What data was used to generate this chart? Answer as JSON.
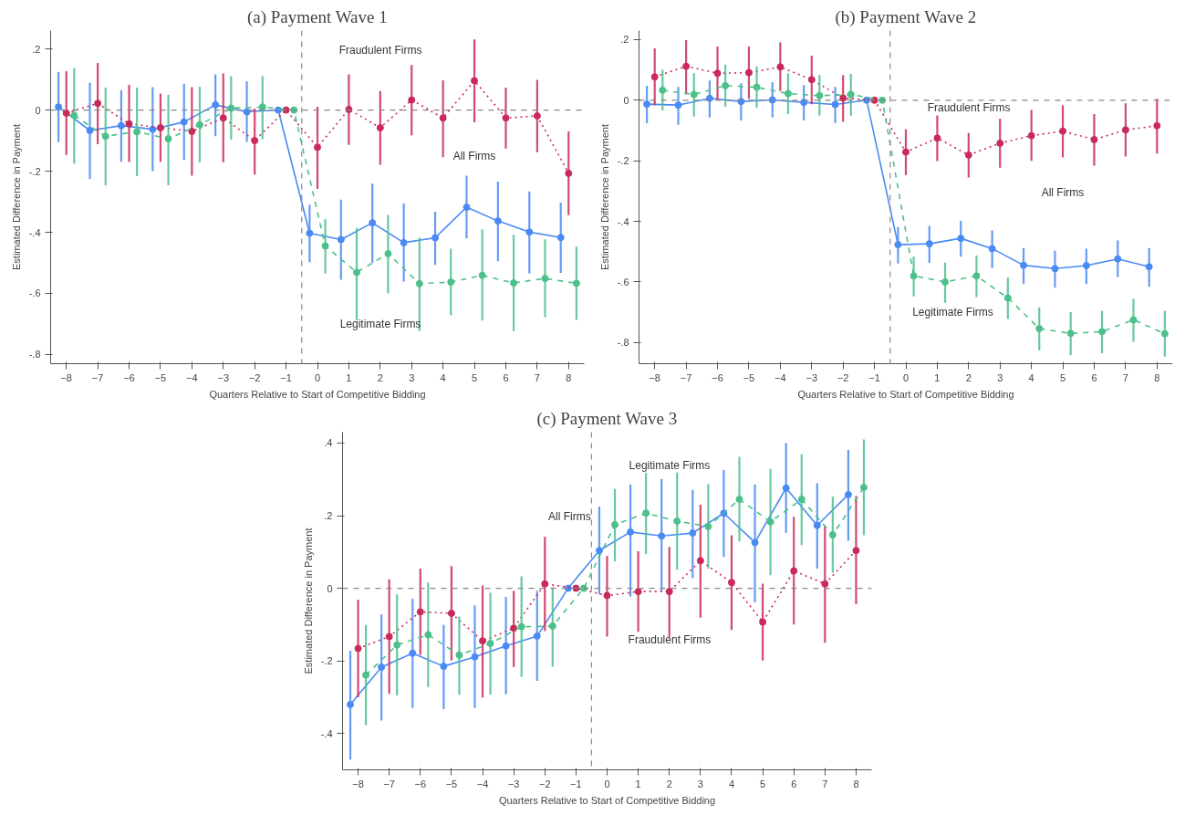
{
  "chart_data": [
    {
      "type": "line",
      "title": "(a) Payment Wave 1",
      "xlabel": "Quarters Relative to Start of Competitive Bidding",
      "ylabel": "Estimated Difference in Payment",
      "xlim": [
        -8.5,
        8.5
      ],
      "ylim": [
        -0.83,
        0.26
      ],
      "xticks": [
        -8,
        -7,
        -6,
        -5,
        -4,
        -3,
        -2,
        -1,
        0,
        1,
        2,
        3,
        4,
        5,
        6,
        7,
        8
      ],
      "yticks": [
        {
          "value": 0.2,
          "label": ".2"
        },
        {
          "value": 0,
          "label": "0"
        },
        {
          "value": -0.2,
          "label": "-.2"
        },
        {
          "value": -0.4,
          "label": "-.4"
        },
        {
          "value": -0.6,
          "label": "-.6"
        },
        {
          "value": -0.8,
          "label": "-.8"
        }
      ],
      "grid": false,
      "marker": "circle",
      "series": [
        {
          "color": "#4a8af4",
          "line_style": "solid",
          "x": [
            -8.25,
            -7.25,
            -6.25,
            -5.25,
            -4.25,
            -3.25,
            -2.25,
            -1.25,
            -0.25,
            0.75,
            1.75,
            2.75,
            3.75,
            4.75,
            5.75,
            6.75,
            7.75
          ],
          "values": [
            0.01,
            -0.067,
            -0.051,
            -0.063,
            -0.039,
            0.017,
            -0.006,
            0,
            -0.403,
            -0.424,
            -0.369,
            -0.434,
            -0.418,
            -0.318,
            -0.363,
            -0.399,
            -0.417
          ],
          "errors": [
            [
              -0.105,
              0.125
            ],
            [
              -0.225,
              0.09
            ],
            [
              -0.169,
              0.065
            ],
            [
              -0.2,
              0.075
            ],
            [
              -0.163,
              0.086
            ],
            [
              -0.086,
              0.117
            ],
            [
              -0.104,
              0.094
            ],
            null,
            [
              -0.498,
              -0.31
            ],
            [
              -0.555,
              -0.293
            ],
            [
              -0.5,
              -0.24
            ],
            [
              -0.561,
              -0.306
            ],
            [
              -0.507,
              -0.333
            ],
            [
              -0.42,
              -0.215
            ],
            [
              -0.495,
              -0.234
            ],
            [
              -0.535,
              -0.266
            ],
            [
              -0.533,
              -0.303
            ]
          ]
        },
        {
          "color": "#c92a5a",
          "line_style": "dotted",
          "x": [
            -8,
            -7,
            -6,
            -5,
            -4,
            -3,
            -2,
            -1,
            0,
            1,
            2,
            3,
            4,
            5,
            6,
            7,
            8
          ],
          "values": [
            -0.01,
            0.022,
            -0.045,
            -0.058,
            -0.07,
            -0.026,
            -0.1,
            0,
            -0.122,
            0.002,
            -0.058,
            0.033,
            -0.026,
            0.096,
            -0.026,
            -0.019,
            -0.207
          ],
          "errors": [
            [
              -0.147,
              0.127
            ],
            [
              -0.112,
              0.154
            ],
            [
              -0.17,
              0.082
            ],
            [
              -0.169,
              0.054
            ],
            [
              -0.215,
              0.075
            ],
            [
              -0.171,
              0.12
            ],
            [
              -0.211,
              0.005
            ],
            null,
            [
              -0.258,
              0.011
            ],
            [
              -0.114,
              0.117
            ],
            [
              -0.179,
              0.062
            ],
            [
              -0.083,
              0.147
            ],
            [
              -0.154,
              0.097
            ],
            [
              -0.04,
              0.231
            ],
            [
              -0.126,
              0.073
            ],
            [
              -0.138,
              0.099
            ],
            [
              -0.344,
              -0.07
            ]
          ]
        },
        {
          "color": "#4cc08a",
          "line_style": "dashed",
          "x": [
            -7.75,
            -6.75,
            -5.75,
            -4.75,
            -3.75,
            -2.75,
            -1.75,
            -0.75,
            0.25,
            1.25,
            2.25,
            3.25,
            4.25,
            5.25,
            6.25,
            7.25,
            8.25
          ],
          "values": [
            -0.018,
            -0.086,
            -0.071,
            -0.094,
            -0.048,
            0.006,
            0.01,
            0,
            -0.445,
            -0.531,
            -0.47,
            -0.568,
            -0.563,
            -0.541,
            -0.566,
            -0.551,
            -0.567
          ],
          "errors": [
            [
              -0.175,
              0.137
            ],
            [
              -0.247,
              0.073
            ],
            [
              -0.216,
              0.073
            ],
            [
              -0.246,
              0.05
            ],
            [
              -0.171,
              0.076
            ],
            [
              -0.097,
              0.111
            ],
            [
              -0.095,
              0.111
            ],
            null,
            [
              -0.535,
              -0.357
            ],
            [
              -0.689,
              -0.386
            ],
            [
              -0.6,
              -0.343
            ],
            [
              -0.723,
              -0.417
            ],
            [
              -0.672,
              -0.454
            ],
            [
              -0.689,
              -0.391
            ],
            [
              -0.723,
              -0.409
            ],
            [
              -0.678,
              -0.423
            ],
            [
              -0.687,
              -0.447
            ]
          ]
        }
      ],
      "ref_lines": [
        {
          "axis": "y",
          "value": 0,
          "color": "#888888",
          "line_style": "dashed"
        },
        {
          "axis": "x",
          "value": -0.5,
          "color": "#888888",
          "line_style": "dashed"
        }
      ],
      "annotations": [
        "Fraudulent Firms",
        "All Firms",
        "Legitimate Firms"
      ]
    },
    {
      "type": "line",
      "title": "(b) Payment Wave 2",
      "xlabel": "Quarters Relative to Start of Competitive Bidding",
      "ylabel": "Estimated Difference in Payment",
      "xlim": [
        -8.5,
        8.5
      ],
      "ylim": [
        -0.87,
        0.23
      ],
      "xticks": [
        -8,
        -7,
        -6,
        -5,
        -4,
        -3,
        -2,
        -1,
        0,
        1,
        2,
        3,
        4,
        5,
        6,
        7,
        8
      ],
      "yticks": [
        {
          "value": 0.2,
          "label": ".2"
        },
        {
          "value": 0,
          "label": "0"
        },
        {
          "value": -0.2,
          "label": "-.2"
        },
        {
          "value": -0.4,
          "label": "-.4"
        },
        {
          "value": -0.6,
          "label": "-.6"
        },
        {
          "value": -0.8,
          "label": "-.8"
        }
      ],
      "grid": false,
      "marker": "circle",
      "series": [
        {
          "color": "#4a8af4",
          "line_style": "solid",
          "x": [
            -8.25,
            -7.25,
            -6.25,
            -5.25,
            -4.25,
            -3.25,
            -2.25,
            -1.25,
            -0.25,
            0.75,
            1.75,
            2.75,
            3.75,
            4.75,
            5.75,
            6.75,
            7.75
          ],
          "values": [
            -0.013,
            -0.016,
            0.006,
            -0.004,
            0.001,
            -0.007,
            -0.014,
            0,
            -0.477,
            -0.474,
            -0.456,
            -0.49,
            -0.545,
            -0.556,
            -0.546,
            -0.524,
            -0.55
          ],
          "errors": [
            [
              -0.075,
              0.048
            ],
            [
              -0.081,
              0.044
            ],
            [
              -0.057,
              0.065
            ],
            [
              -0.067,
              0.056
            ],
            [
              -0.057,
              0.06
            ],
            [
              -0.067,
              0.05
            ],
            [
              -0.075,
              0.044
            ],
            null,
            [
              -0.539,
              -0.419
            ],
            [
              -0.537,
              -0.415
            ],
            [
              -0.517,
              -0.398
            ],
            [
              -0.554,
              -0.43
            ],
            [
              -0.607,
              -0.488
            ],
            [
              -0.619,
              -0.497
            ],
            [
              -0.607,
              -0.49
            ],
            [
              -0.584,
              -0.463
            ],
            [
              -0.616,
              -0.488
            ]
          ]
        },
        {
          "color": "#c92a5a",
          "line_style": "dotted",
          "x": [
            -8,
            -7,
            -6,
            -5,
            -4,
            -3,
            -2,
            -1,
            0,
            1,
            2,
            3,
            4,
            5,
            6,
            7,
            8
          ],
          "values": [
            0.077,
            0.112,
            0.089,
            0.091,
            0.11,
            0.068,
            0.007,
            0,
            -0.171,
            -0.125,
            -0.181,
            -0.142,
            -0.117,
            -0.102,
            -0.13,
            -0.098,
            -0.084
          ],
          "errors": [
            [
              -0.016,
              0.171
            ],
            [
              0.019,
              0.198
            ],
            [
              0.001,
              0.177
            ],
            [
              0.005,
              0.177
            ],
            [
              0.03,
              0.191
            ],
            [
              -0.013,
              0.147
            ],
            [
              -0.071,
              0.083
            ],
            null,
            [
              -0.247,
              -0.096
            ],
            [
              -0.201,
              -0.05
            ],
            [
              -0.255,
              -0.108
            ],
            [
              -0.223,
              -0.061
            ],
            [
              -0.2,
              -0.032
            ],
            [
              -0.189,
              -0.016
            ],
            [
              -0.216,
              -0.046
            ],
            [
              -0.186,
              -0.01
            ],
            [
              -0.176,
              0.005
            ]
          ]
        },
        {
          "color": "#4cc08a",
          "line_style": "dashed",
          "x": [
            -7.75,
            -6.75,
            -5.75,
            -4.75,
            -3.75,
            -2.75,
            -1.75,
            -0.75,
            0.25,
            1.25,
            2.25,
            3.25,
            4.25,
            5.25,
            6.25,
            7.25,
            8.25
          ],
          "values": [
            0.033,
            0.019,
            0.048,
            0.043,
            0.022,
            0.015,
            0.019,
            0,
            -0.58,
            -0.6,
            -0.58,
            -0.653,
            -0.754,
            -0.77,
            -0.764,
            -0.725,
            -0.771
          ],
          "errors": [
            [
              -0.034,
              0.101
            ],
            [
              -0.054,
              0.089
            ],
            [
              -0.022,
              0.118
            ],
            [
              -0.025,
              0.112
            ],
            [
              -0.046,
              0.089
            ],
            [
              -0.051,
              0.083
            ],
            [
              -0.051,
              0.087
            ],
            null,
            [
              -0.648,
              -0.517
            ],
            [
              -0.669,
              -0.536
            ],
            [
              -0.65,
              -0.513
            ],
            [
              -0.722,
              -0.586
            ],
            [
              -0.826,
              -0.684
            ],
            [
              -0.841,
              -0.7
            ],
            [
              -0.835,
              -0.695
            ],
            [
              -0.798,
              -0.655
            ],
            [
              -0.847,
              -0.695
            ]
          ]
        }
      ],
      "ref_lines": [
        {
          "axis": "y",
          "value": 0,
          "color": "#888888",
          "line_style": "dashed"
        },
        {
          "axis": "x",
          "value": -0.5,
          "color": "#888888",
          "line_style": "dashed"
        }
      ],
      "annotations": [
        "Fraudulent Firms",
        "All Firms",
        "Legitimate Firms"
      ]
    },
    {
      "type": "line",
      "title": "(c) Payment Wave 3",
      "xlabel": "Quarters Relative to Start of Competitive Bidding",
      "ylabel": "Estimated Difference in Payment",
      "xlim": [
        -8.5,
        8.5
      ],
      "ylim": [
        -0.5,
        0.43
      ],
      "xticks": [
        -8,
        -7,
        -6,
        -5,
        -4,
        -3,
        -2,
        -1,
        0,
        1,
        2,
        3,
        4,
        5,
        6,
        7,
        8
      ],
      "yticks": [
        {
          "value": 0.4,
          "label": ".4"
        },
        {
          "value": 0.2,
          "label": ".2"
        },
        {
          "value": 0,
          "label": "0"
        },
        {
          "value": -0.2,
          "label": "-.2"
        },
        {
          "value": -0.4,
          "label": "-.4"
        }
      ],
      "grid": false,
      "marker": "circle",
      "series": [
        {
          "color": "#4a8af4",
          "line_style": "solid",
          "x": [
            -8.25,
            -7.25,
            -6.25,
            -5.25,
            -4.25,
            -3.25,
            -2.25,
            -1.25,
            -0.25,
            0.75,
            1.75,
            2.75,
            3.75,
            4.75,
            5.75,
            6.75,
            7.75
          ],
          "values": [
            -0.32,
            -0.217,
            -0.179,
            -0.215,
            -0.189,
            -0.159,
            -0.132,
            0,
            0.104,
            0.155,
            0.144,
            0.152,
            0.207,
            0.126,
            0.276,
            0.173,
            0.258
          ],
          "errors": [
            [
              -0.472,
              -0.172
            ],
            [
              -0.364,
              -0.072
            ],
            [
              -0.33,
              -0.029
            ],
            [
              -0.333,
              -0.101
            ],
            [
              -0.33,
              -0.047
            ],
            [
              -0.292,
              -0.024
            ],
            [
              -0.255,
              -0.007
            ],
            null,
            [
              -0.017,
              0.225
            ],
            [
              -0.023,
              0.286
            ],
            [
              -0.007,
              0.301
            ],
            [
              0.028,
              0.271
            ],
            [
              0.086,
              0.326
            ],
            [
              -0.038,
              0.286
            ],
            [
              0.153,
              0.4
            ],
            [
              0.054,
              0.289
            ],
            [
              0.131,
              0.381
            ]
          ]
        },
        {
          "color": "#c92a5a",
          "line_style": "dotted",
          "x": [
            -8,
            -7,
            -6,
            -5,
            -4,
            -3,
            -2,
            -1,
            0,
            1,
            2,
            3,
            4,
            5,
            6,
            7,
            8
          ],
          "values": [
            -0.166,
            -0.133,
            -0.065,
            -0.069,
            -0.145,
            -0.11,
            0.012,
            0,
            -0.02,
            -0.009,
            -0.009,
            0.076,
            0.016,
            -0.093,
            0.048,
            0.012,
            0.104
          ],
          "errors": [
            [
              -0.3,
              -0.032
            ],
            [
              -0.291,
              0.025
            ],
            [
              -0.184,
              0.054
            ],
            [
              -0.199,
              0.061
            ],
            [
              -0.301,
              0.008
            ],
            [
              -0.217,
              -0.007
            ],
            [
              -0.118,
              0.142
            ],
            null,
            [
              -0.133,
              0.089
            ],
            [
              -0.12,
              0.102
            ],
            [
              -0.135,
              0.114
            ],
            [
              -0.081,
              0.23
            ],
            [
              -0.115,
              0.146
            ],
            [
              -0.199,
              0.013
            ],
            [
              -0.1,
              0.197
            ],
            [
              -0.15,
              0.173
            ],
            [
              -0.044,
              0.254
            ]
          ]
        },
        {
          "color": "#4cc08a",
          "line_style": "dashed",
          "x": [
            -7.75,
            -6.75,
            -5.75,
            -4.75,
            -3.75,
            -2.75,
            -1.75,
            -0.75,
            0.25,
            1.25,
            2.25,
            3.25,
            4.25,
            5.25,
            6.25,
            7.25,
            8.25
          ],
          "values": [
            -0.239,
            -0.156,
            -0.128,
            -0.184,
            -0.152,
            -0.106,
            -0.104,
            0,
            0.175,
            0.207,
            0.185,
            0.17,
            0.245,
            0.183,
            0.245,
            0.147,
            0.278
          ],
          "errors": [
            [
              -0.377,
              -0.101
            ],
            [
              -0.295,
              -0.017
            ],
            [
              -0.272,
              0.016
            ],
            [
              -0.293,
              -0.078
            ],
            [
              -0.293,
              -0.012
            ],
            [
              -0.244,
              0.033
            ],
            [
              -0.216,
              0.003
            ],
            null,
            [
              0.074,
              0.274
            ],
            [
              0.094,
              0.318
            ],
            [
              0.051,
              0.319
            ],
            [
              0.054,
              0.287
            ],
            [
              0.129,
              0.362
            ],
            [
              0.036,
              0.329
            ],
            [
              0.119,
              0.369
            ],
            [
              0.043,
              0.252
            ],
            [
              0.146,
              0.41
            ]
          ]
        }
      ],
      "ref_lines": [
        {
          "axis": "y",
          "value": 0,
          "color": "#888888",
          "line_style": "dashed"
        },
        {
          "axis": "x",
          "value": -0.5,
          "color": "#888888",
          "line_style": "dashed"
        }
      ],
      "annotations": [
        "Legitimate Firms",
        "All Firms",
        "Fraudulent Firms"
      ]
    }
  ]
}
